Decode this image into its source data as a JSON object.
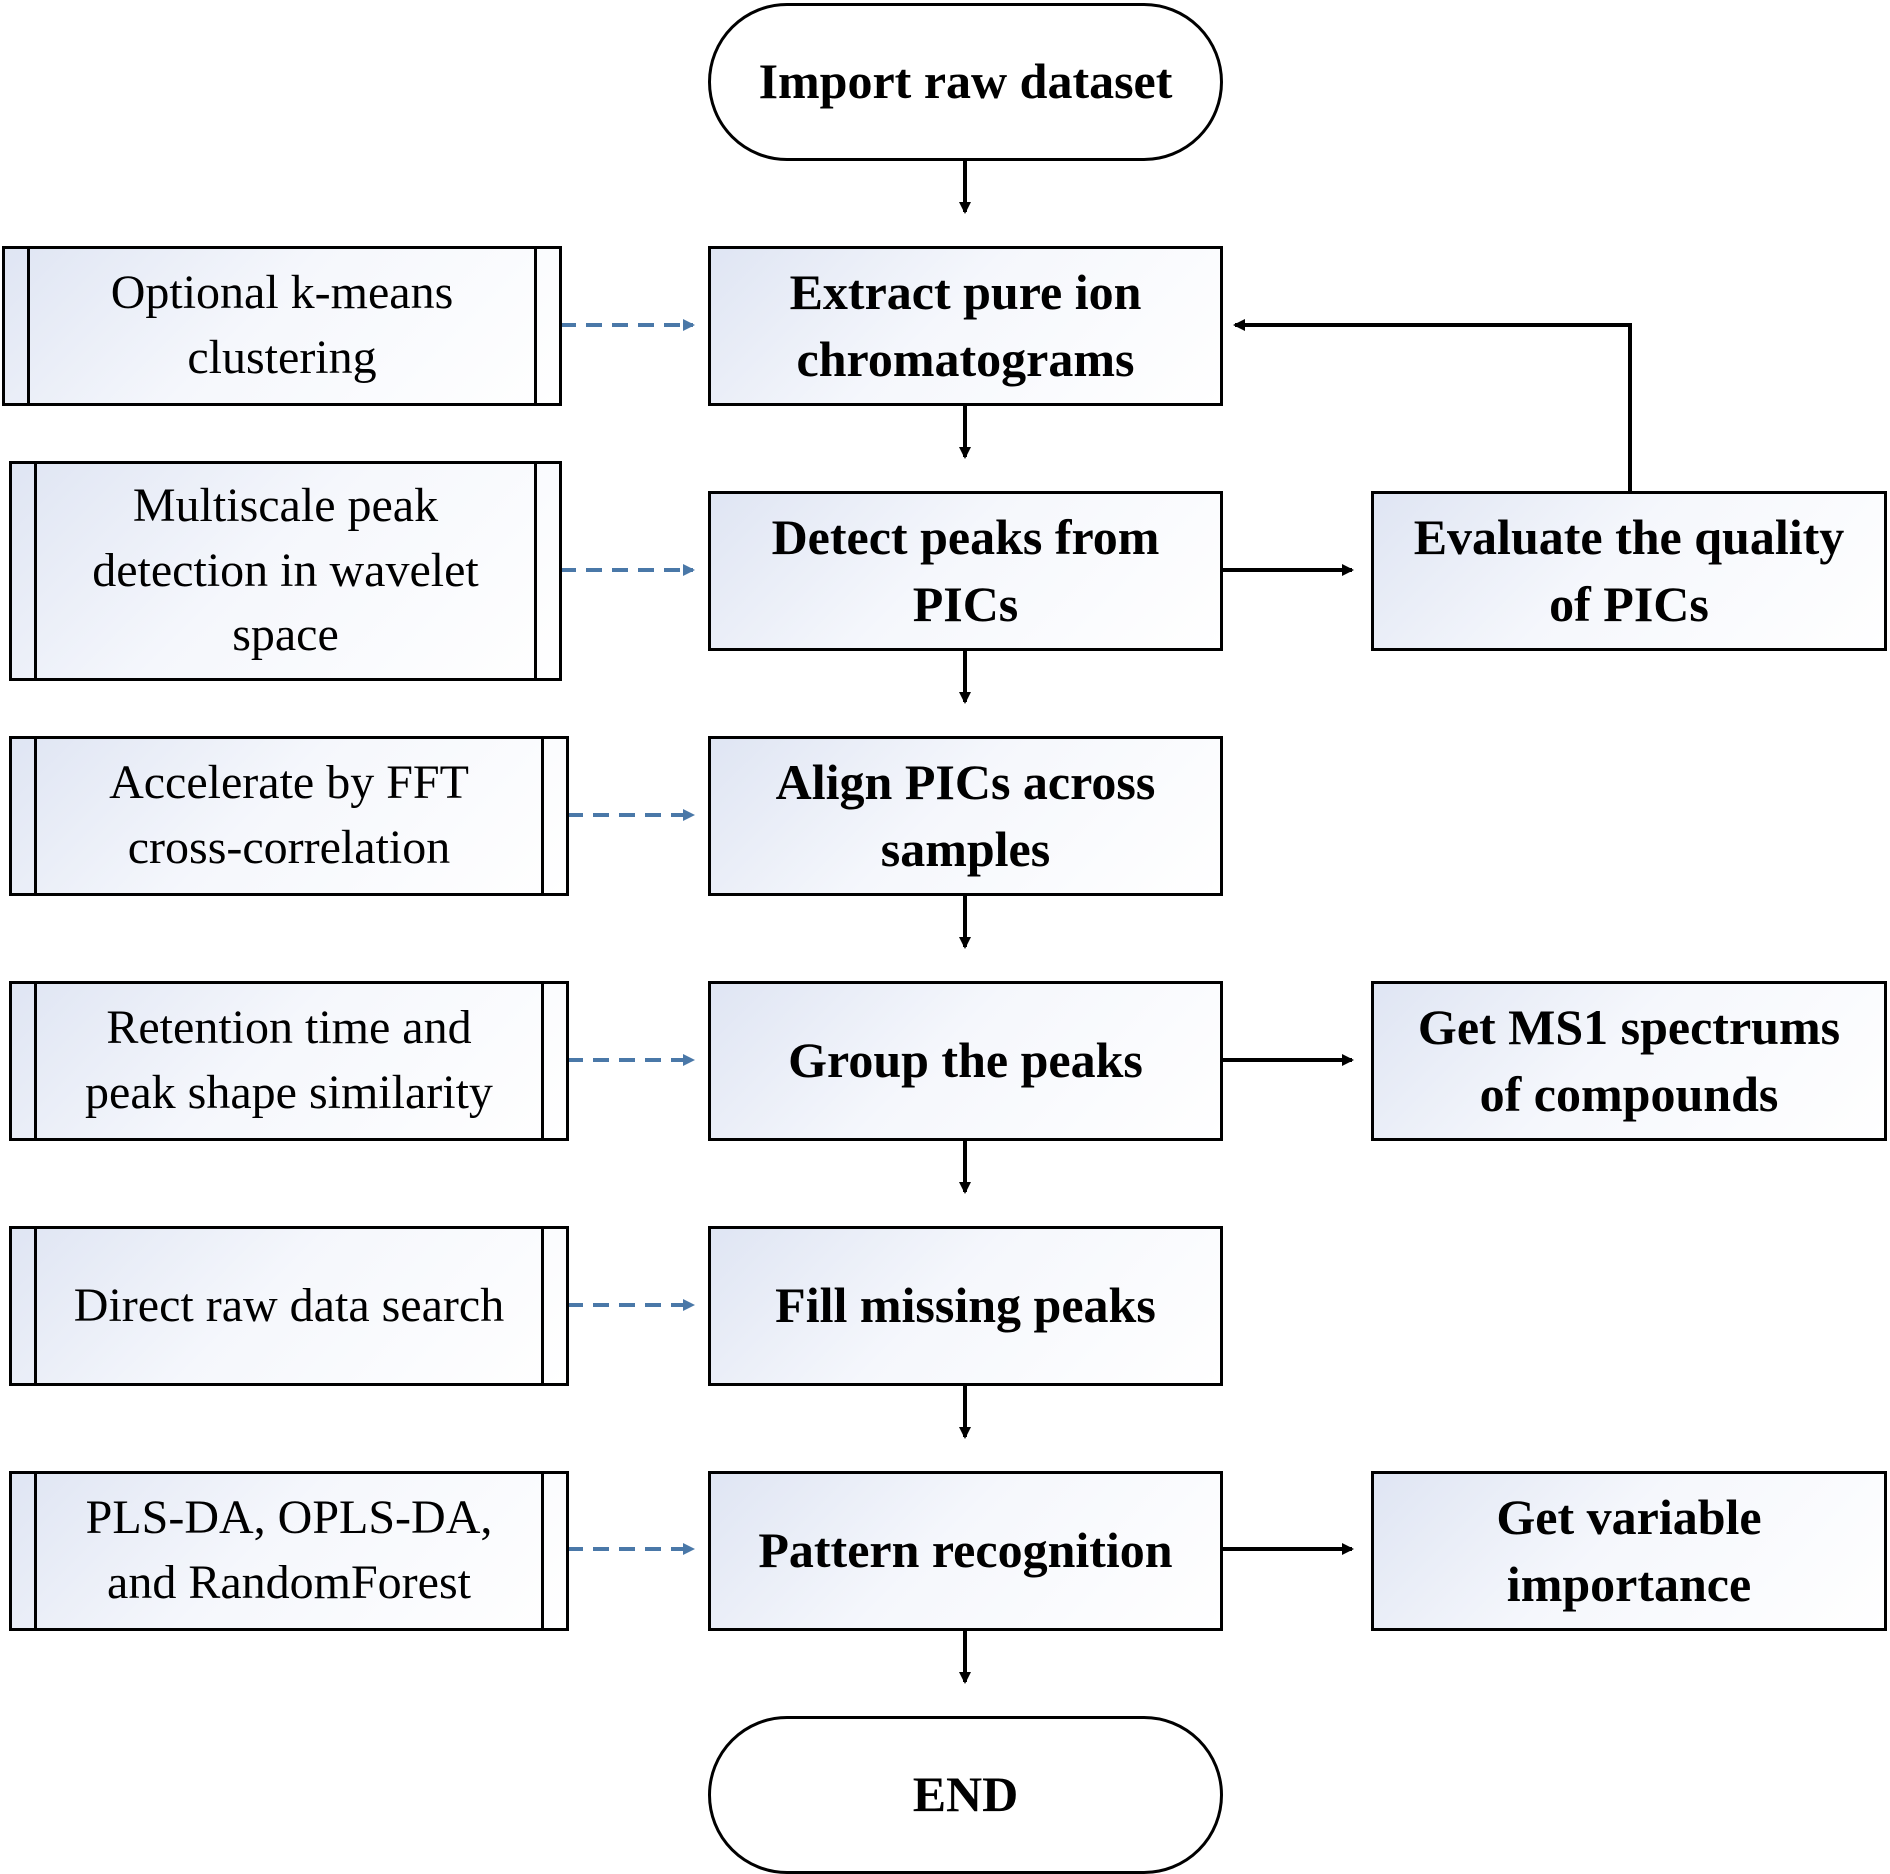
{
  "terminals": {
    "start": "Import raw dataset",
    "end": "END"
  },
  "main_steps": [
    "Extract pure ion\nchromatograms",
    "Detect peaks from\nPICs",
    "Align PICs across\nsamples",
    "Group the peaks",
    "Fill missing peaks",
    "Pattern recognition"
  ],
  "methods": [
    "Optional k-means\nclustering",
    "Multiscale peak\ndetection in wavelet\nspace",
    "Accelerate by FFT\ncross-correlation",
    "Retention time and\npeak shape similarity",
    "Direct raw data search",
    "PLS-DA, OPLS-DA,\nand RandomForest"
  ],
  "outputs": {
    "quality": "Evaluate the quality\nof PICs",
    "ms1": "Get MS1 spectrums\nof compounds",
    "importance": "Get variable\nimportance"
  },
  "colors": {
    "box_fill_dark": "#dfe5f3",
    "dashed_arrow": "#4a78a8",
    "solid_arrow": "#000000"
  }
}
